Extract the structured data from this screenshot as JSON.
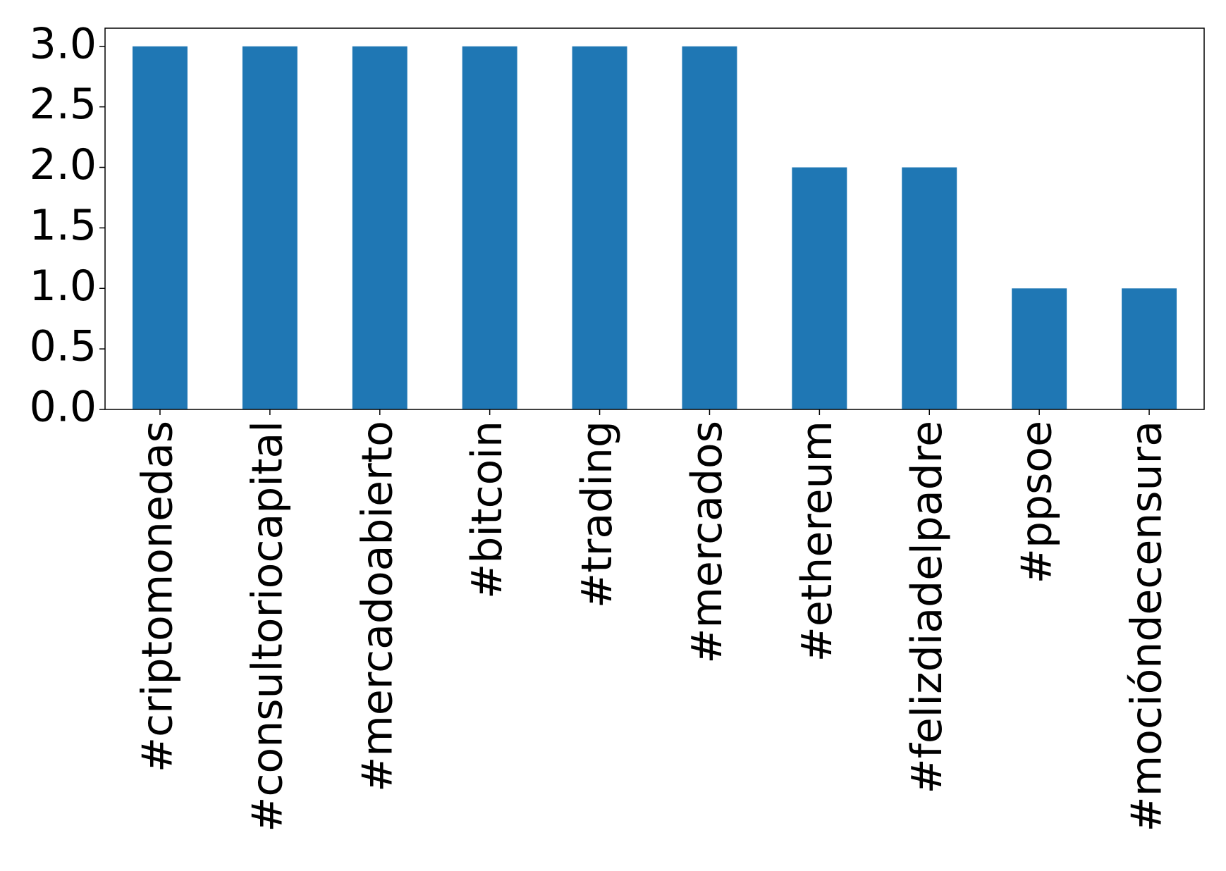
{
  "chart_data": {
    "type": "bar",
    "categories": [
      "#criptomonedas",
      "#consultoriocapital",
      "#mercadoabierto",
      "#bitcoin",
      "#trading",
      "#mercados",
      "#ethereum",
      "#felizdiadelpadre",
      "#ppsoe",
      "#mociónde­censura"
    ],
    "values": [
      3,
      3,
      3,
      3,
      3,
      3,
      2,
      2,
      1,
      1
    ],
    "color": "#1f77b4",
    "ylim": [
      0,
      3.15
    ],
    "yticks": [
      {
        "value": 0,
        "label": "0.0"
      },
      {
        "value": 0.5,
        "label": "0.5"
      },
      {
        "value": 1,
        "label": "1.0"
      },
      {
        "value": 1.5,
        "label": "1.5"
      },
      {
        "value": 2,
        "label": "2.0"
      },
      {
        "value": 2.5,
        "label": "2.5"
      },
      {
        "value": 3,
        "label": "3.0"
      }
    ],
    "grid": false
  }
}
